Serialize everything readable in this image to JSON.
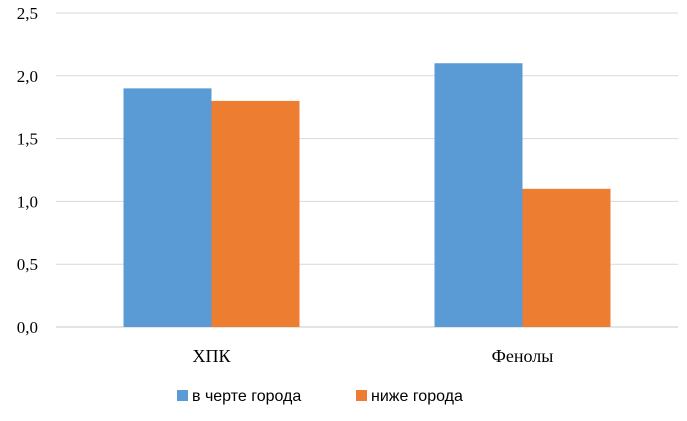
{
  "chart_data": {
    "type": "bar",
    "categories": [
      "ХПК",
      "Фенолы"
    ],
    "series": [
      {
        "name": "в черте города",
        "values": [
          1.9,
          2.1
        ],
        "color": "#5b9bd5"
      },
      {
        "name": "ниже города",
        "values": [
          1.8,
          1.1
        ],
        "color": "#ed7d31"
      }
    ],
    "ylim": [
      0,
      2.5
    ],
    "yticks": [
      "0,0",
      "0,5",
      "1,0",
      "1,5",
      "2,0",
      "2,5"
    ],
    "grid": true,
    "legend_position": "bottom"
  }
}
